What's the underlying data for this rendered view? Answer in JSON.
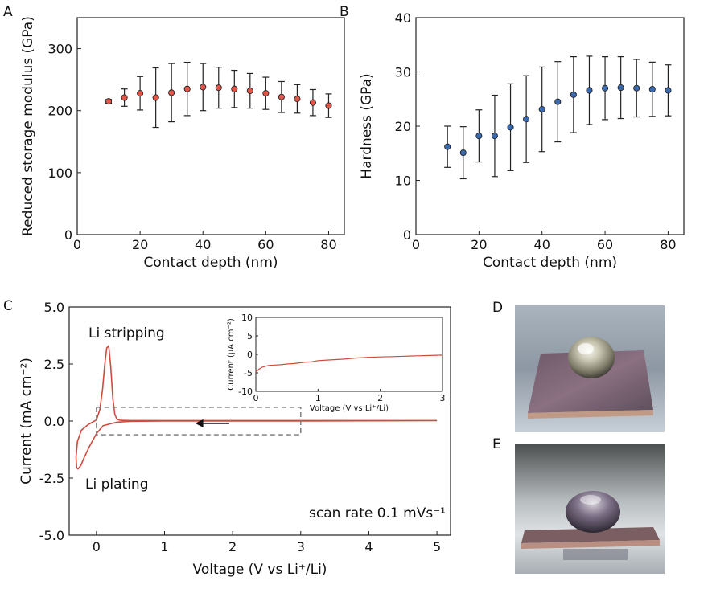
{
  "panels": {
    "A": {
      "letter": "A"
    },
    "B": {
      "letter": "B"
    },
    "C": {
      "letter": "C"
    },
    "D": {
      "letter": "D"
    },
    "E": {
      "letter": "E"
    }
  },
  "chart_data": [
    {
      "id": "A",
      "type": "scatter",
      "xlabel": "Contact depth (nm)",
      "ylabel": "Reduced storage modulus (GPa)",
      "xlim": [
        0,
        85
      ],
      "ylim": [
        0,
        350
      ],
      "xticks": [
        0,
        20,
        40,
        60,
        80
      ],
      "yticks": [
        0,
        100,
        200,
        300
      ],
      "marker_color": "#e0574a",
      "x": [
        10,
        15,
        20,
        25,
        30,
        35,
        40,
        45,
        50,
        55,
        60,
        65,
        70,
        75,
        80
      ],
      "y": [
        215,
        221,
        228,
        221,
        229,
        235,
        238,
        237,
        235,
        232,
        228,
        222,
        219,
        213,
        208
      ],
      "err": [
        3,
        14,
        27,
        48,
        47,
        43,
        38,
        33,
        30,
        28,
        26,
        25,
        23,
        21,
        19
      ]
    },
    {
      "id": "B",
      "type": "scatter",
      "xlabel": "Contact depth (nm)",
      "ylabel": "Hardness (GPa)",
      "xlim": [
        0,
        85
      ],
      "ylim": [
        0,
        40
      ],
      "xticks": [
        0,
        20,
        40,
        60,
        80
      ],
      "yticks": [
        0,
        10,
        20,
        30,
        40
      ],
      "marker_color": "#3a6bb0",
      "x": [
        10,
        15,
        20,
        25,
        30,
        35,
        40,
        45,
        50,
        55,
        60,
        65,
        70,
        75,
        80
      ],
      "y": [
        16.2,
        15.1,
        18.2,
        18.2,
        19.8,
        21.3,
        23.1,
        24.5,
        25.8,
        26.6,
        27.0,
        27.1,
        27.0,
        26.8,
        26.6
      ],
      "err": [
        3.8,
        4.8,
        4.8,
        7.5,
        8.0,
        8.0,
        7.8,
        7.4,
        7.0,
        6.3,
        5.8,
        5.7,
        5.3,
        5.0,
        4.7
      ]
    },
    {
      "id": "C",
      "type": "line",
      "xlabel": "Voltage (V vs Li⁺/Li)",
      "ylabel": "Current (mA cm⁻²)",
      "xlim": [
        -0.4,
        5.2
      ],
      "ylim": [
        -5.0,
        5.0
      ],
      "xticks": [
        0,
        1,
        2,
        3,
        4,
        5
      ],
      "yticks": [
        "-5.0",
        "-2.5",
        "0.0",
        "2.5",
        "5.0"
      ],
      "line_color": "#d04a3e",
      "annotations": [
        "Li stripping",
        "Li plating",
        "scan rate 0.1 mVs⁻¹"
      ],
      "x": [
        5.0,
        4.0,
        3.0,
        2.0,
        1.0,
        0.5,
        0.3,
        0.1,
        0.0,
        -0.1,
        -0.18,
        -0.23,
        -0.27,
        -0.29,
        -0.3,
        -0.28,
        -0.22,
        -0.12,
        0.0,
        0.05,
        0.09,
        0.12,
        0.15,
        0.18,
        0.21,
        0.24,
        0.27,
        0.3,
        0.35,
        0.5,
        1.0,
        2.0,
        3.0,
        4.0,
        5.0
      ],
      "y": [
        0.02,
        0.01,
        0.0,
        0.0,
        0.0,
        -0.01,
        -0.05,
        -0.2,
        -0.55,
        -1.1,
        -1.6,
        -1.95,
        -2.1,
        -2.05,
        -1.6,
        -0.9,
        -0.4,
        -0.15,
        0.05,
        0.5,
        1.4,
        2.4,
        3.2,
        3.3,
        2.4,
        1.0,
        0.3,
        0.08,
        0.03,
        0.02,
        0.02,
        0.02,
        0.02,
        0.02,
        0.02
      ],
      "inset": {
        "xlabel": "Voltage (V vs Li⁺/Li)",
        "ylabel": "Current (μA cm⁻²)",
        "xlim": [
          0,
          3
        ],
        "ylim": [
          -10,
          10
        ],
        "xticks": [
          0,
          1,
          2,
          3
        ],
        "yticks": [
          -10,
          -5,
          0,
          5,
          10
        ],
        "x": [
          0.0,
          0.05,
          0.1,
          0.2,
          0.3,
          0.4,
          0.5,
          0.6,
          0.7,
          0.8,
          0.9,
          1.0,
          1.2,
          1.4,
          1.6,
          1.8,
          2.0,
          2.2,
          2.4,
          2.6,
          2.8,
          3.0
        ],
        "y": [
          -4.8,
          -4.0,
          -3.5,
          -3.0,
          -2.9,
          -2.8,
          -2.6,
          -2.5,
          -2.3,
          -2.1,
          -2.0,
          -1.7,
          -1.5,
          -1.3,
          -1.0,
          -0.8,
          -0.7,
          -0.6,
          -0.5,
          -0.4,
          -0.3,
          -0.2
        ]
      }
    }
  ]
}
